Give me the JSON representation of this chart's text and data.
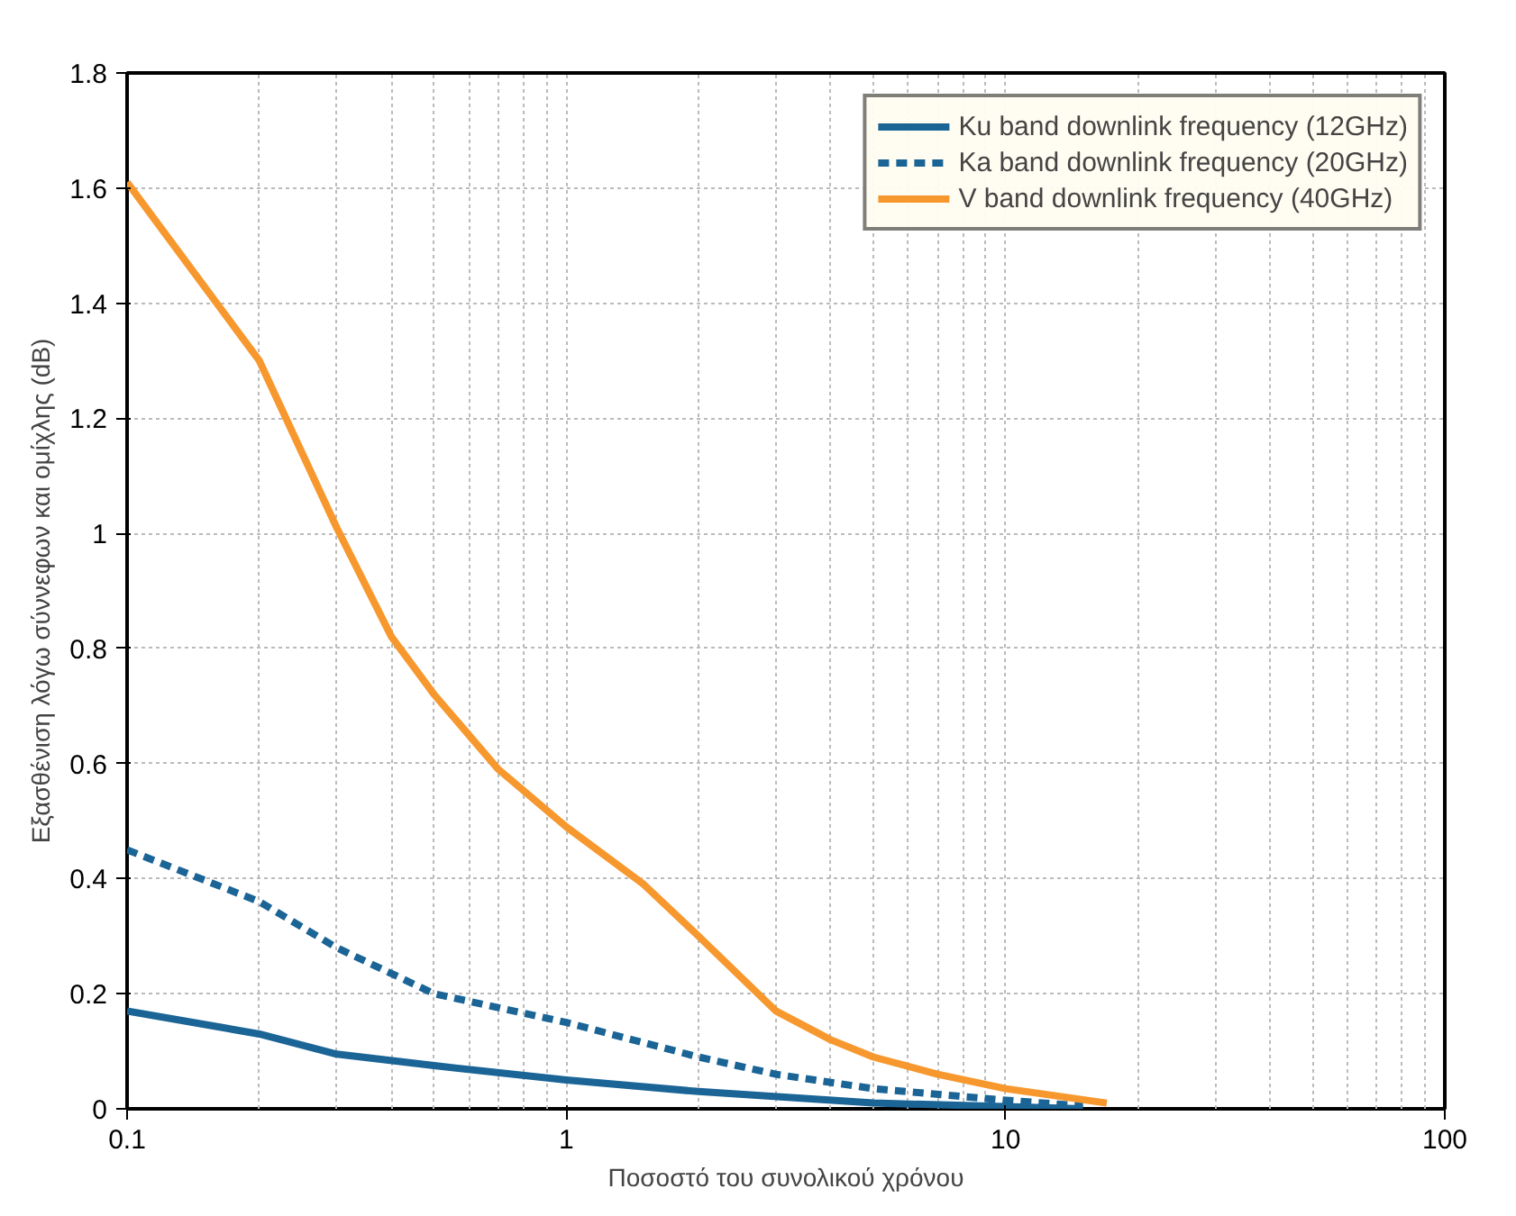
{
  "chart_data": {
    "type": "line",
    "xlabel": "Ποσοστό του συνολικού χρόνου",
    "ylabel": "Εξασθένιση λόγω σύννεφων και ομίχλης (dB)",
    "log": "x",
    "xlim": [
      0.1,
      100
    ],
    "xticks": [
      0.1,
      1,
      10,
      100
    ],
    "ylim": [
      0,
      1.8
    ],
    "yticks": [
      0,
      0.2,
      0.4,
      0.6,
      0.8,
      1,
      1.2,
      1.4,
      1.6,
      1.8
    ],
    "grid": true,
    "legend": "top right",
    "series": [
      {
        "name": "Ku band downlink frequency (12GHz)",
        "color": "#1a6496",
        "line_style": "solid",
        "x": [
          0.1,
          0.2,
          0.3,
          0.5,
          1,
          2,
          5,
          10,
          15
        ],
        "values": [
          0.17,
          0.13,
          0.095,
          0.075,
          0.05,
          0.03,
          0.01,
          0.004,
          0
        ]
      },
      {
        "name": "Ka band downlink frequency (20GHz)",
        "color": "#1a6496",
        "line_style": "dashed",
        "x": [
          0.1,
          0.2,
          0.3,
          0.5,
          1,
          2,
          3,
          5,
          10,
          15
        ],
        "values": [
          0.45,
          0.36,
          0.28,
          0.2,
          0.15,
          0.09,
          0.06,
          0.035,
          0.015,
          0.005
        ]
      },
      {
        "name": "V band downlink frequency (40GHz)",
        "color": "#f7982f",
        "line_style": "solid",
        "x": [
          0.1,
          0.2,
          0.3,
          0.4,
          0.5,
          0.7,
          1,
          1.5,
          2,
          3,
          4,
          5,
          7,
          10,
          17
        ],
        "values": [
          1.61,
          1.3,
          1.01,
          0.82,
          0.72,
          0.59,
          0.49,
          0.39,
          0.3,
          0.17,
          0.12,
          0.09,
          0.06,
          0.035,
          0.01
        ]
      }
    ]
  }
}
